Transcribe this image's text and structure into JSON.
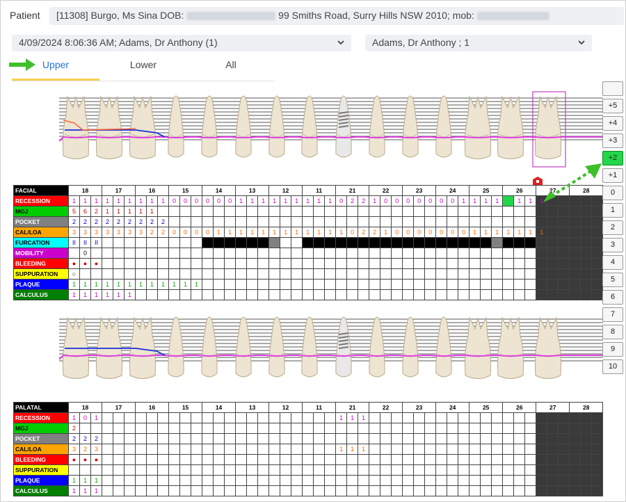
{
  "patient": {
    "label": "Patient",
    "info_prefix": "[11308] Burgo, Ms Sina DOB:",
    "info_address": "99 Smiths Road, Surry Hills NSW 2010; mob:"
  },
  "exam_select": {
    "value": "4/09/2024 8:06:36 AM; Adams, Dr Anthony (1)"
  },
  "provider_select": {
    "value": "Adams, Dr Anthony ; 1"
  },
  "tabs": [
    {
      "label": "Upper",
      "active": true
    },
    {
      "label": "Lower",
      "active": false
    },
    {
      "label": "All",
      "active": false
    }
  ],
  "side_buttons": [
    "",
    "+5",
    "+4",
    "+3",
    "+2",
    "+1",
    "0",
    "1",
    "2",
    "3",
    "4",
    "5",
    "6",
    "7",
    "8",
    "9",
    "10"
  ],
  "side_active": "+2",
  "teeth_numbers": [
    "18",
    "17",
    "16",
    "15",
    "14",
    "13",
    "12",
    "11",
    "21",
    "22",
    "23",
    "24",
    "25",
    "26",
    "27",
    "28"
  ],
  "colors": {
    "accent": "#f6d154",
    "active_green": "#22d84a",
    "arrow_green": "#3fbf2a",
    "selection_box": "#c040c0",
    "gum_line": "#e040e0",
    "recession": "#ff0000",
    "mgj": "#00cc00",
    "pocket": "#808080",
    "cal_loa": "#ffa500",
    "furcation": "#00ffff",
    "mobility": "#cc00cc",
    "bleeding": "#ff0000",
    "suppuration": "#ffff00",
    "plaque": "#0000ff",
    "calculus": "#008000"
  },
  "facial": {
    "header": "FACIAL",
    "rows": [
      {
        "label": "RECESSION",
        "bg": "#ff0000",
        "fg": "#ffffff",
        "color": "#cc00cc",
        "cells": [
          "1",
          "1",
          "1",
          "1",
          "1",
          "1",
          "1",
          "1",
          "1",
          "0",
          "0",
          "0",
          "0",
          "0",
          "0",
          "1",
          "1",
          "1",
          "1",
          "1",
          "1",
          "1",
          "1",
          "1",
          "0",
          "2",
          "2",
          "1",
          "0",
          "0",
          "0",
          "0",
          "0",
          "0",
          "0",
          "1",
          "1",
          "1",
          "1",
          "1",
          "1",
          "1",
          "1"
        ]
      },
      {
        "label": "MGJ",
        "bg": "#00cc00",
        "fg": "#000000",
        "color": "#cc0000",
        "cells": [
          "5",
          "6",
          "2",
          "1",
          "1",
          "1",
          "1",
          "1"
        ]
      },
      {
        "label": "POCKET",
        "bg": "#808080",
        "fg": "#ffffff",
        "color": "#0000cc",
        "cells": [
          "2",
          "2",
          "2",
          "2",
          "2",
          "2",
          "2",
          "2",
          "2"
        ]
      },
      {
        "label": "CAL/LOA",
        "bg": "#ffa500",
        "fg": "#000000",
        "color": "#ff6600",
        "cells": [
          "3",
          "3",
          "3",
          "3",
          "3",
          "3",
          "3",
          "2",
          "2",
          "0",
          "0",
          "0",
          "0",
          "1",
          "1",
          "1",
          "1",
          "1",
          "1",
          "1",
          "1",
          "1",
          "1",
          "1",
          "1",
          "0",
          "2",
          "2",
          "1",
          "0",
          "0",
          "0",
          "0",
          "0",
          "0",
          "0",
          "1",
          "1",
          "1",
          "1",
          "1",
          "1",
          "1"
        ]
      },
      {
        "label": "FURCATION",
        "bg": "#00ffff",
        "fg": "#000000",
        "color": "#0000cc",
        "cells": [
          "II",
          "II",
          "II"
        ]
      },
      {
        "label": "MOBILITY",
        "bg": "#cc00cc",
        "fg": "#ffffff",
        "color": "#000000",
        "cells": [
          "",
          "0"
        ]
      },
      {
        "label": "BLEEDING",
        "bg": "#ff0000",
        "fg": "#ffffff",
        "color": "#cc0000",
        "cells": [
          "●",
          "●",
          "●"
        ]
      },
      {
        "label": "SUPPURATION",
        "bg": "#ffff00",
        "fg": "#000000",
        "color": "#000000",
        "cells": [
          "○"
        ]
      },
      {
        "label": "PLAQUE",
        "bg": "#0000ff",
        "fg": "#ffffff",
        "color": "#00aa00",
        "cells": [
          "1",
          "1",
          "1",
          "1",
          "1",
          "1",
          "1",
          "1",
          "1",
          "1",
          "1",
          "1"
        ]
      },
      {
        "label": "CALCULUS",
        "bg": "#008000",
        "fg": "#ffffff",
        "color": "#cc00cc",
        "cells": [
          "1",
          "1",
          "1",
          "1",
          "1",
          "1"
        ]
      }
    ]
  },
  "palatal": {
    "header": "PALATAL",
    "rows": [
      {
        "label": "RECESSION",
        "bg": "#ff0000",
        "fg": "#ffffff",
        "color": "#cc00cc",
        "cells": [
          "1",
          "0",
          "1",
          "",
          "",
          "",
          "",
          "",
          "",
          "",
          "",
          "",
          "",
          "",
          "",
          "",
          "",
          "",
          "",
          "",
          "",
          "",
          "",
          "",
          "1",
          "1",
          "1"
        ]
      },
      {
        "label": "MGJ",
        "bg": "#00cc00",
        "fg": "#000000",
        "color": "#cc0000",
        "cells": [
          "2"
        ]
      },
      {
        "label": "POCKET",
        "bg": "#808080",
        "fg": "#ffffff",
        "color": "#0000cc",
        "cells": [
          "2",
          "2",
          "2"
        ]
      },
      {
        "label": "CAL/LOA",
        "bg": "#ffa500",
        "fg": "#000000",
        "color": "#ff6600",
        "cells": [
          "3",
          "2",
          "3",
          "",
          "",
          "",
          "",
          "",
          "",
          "",
          "",
          "",
          "",
          "",
          "",
          "",
          "",
          "",
          "",
          "",
          "",
          "",
          "",
          "",
          "1",
          "1",
          "1"
        ]
      },
      {
        "label": "BLEEDING",
        "bg": "#ff0000",
        "fg": "#ffffff",
        "color": "#cc0000",
        "cells": [
          "●",
          "●",
          "●"
        ]
      },
      {
        "label": "SUPPURATION",
        "bg": "#ffff00",
        "fg": "#000000",
        "color": "#000000",
        "cells": []
      },
      {
        "label": "PLAQUE",
        "bg": "#0000ff",
        "fg": "#ffffff",
        "color": "#00aa00",
        "cells": [
          "1",
          "1",
          "1"
        ]
      },
      {
        "label": "CALCULUS",
        "bg": "#008000",
        "fg": "#ffffff",
        "color": "#cc00cc",
        "cells": [
          "1",
          "1",
          "1"
        ]
      }
    ]
  }
}
